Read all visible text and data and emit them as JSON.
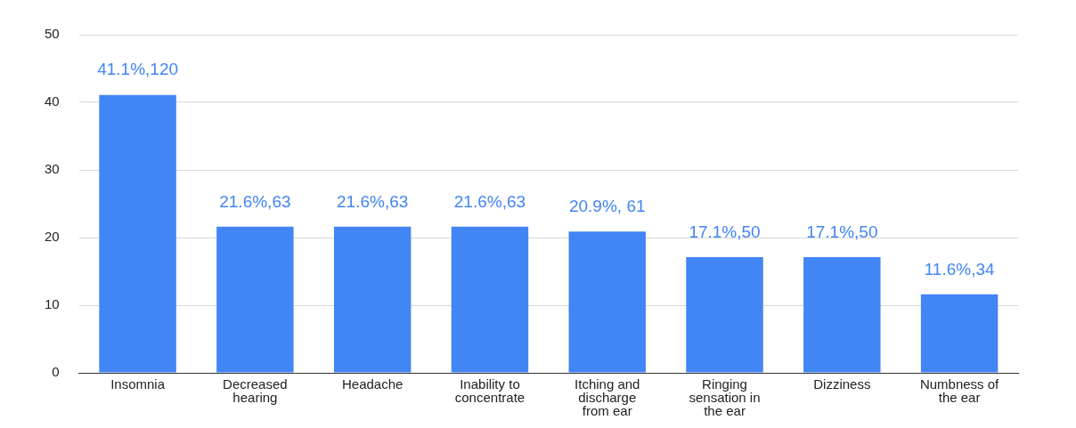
{
  "chart_data": {
    "type": "bar",
    "categories": [
      "Insomnia",
      "Decreased hearing",
      "Headache",
      "Inability to concentrate",
      "Itching and discharge from ear",
      "Ringing sensation in the ear",
      "Dizziness",
      "Numbness of the ear"
    ],
    "values": [
      41.1,
      21.6,
      21.6,
      21.6,
      20.9,
      17.1,
      17.1,
      11.6
    ],
    "value_labels": [
      "41.1%,120",
      "21.6%,63",
      "21.6%,63",
      "21.6%,63",
      "20.9%, 61",
      "17.1%,50",
      "17.1%,50",
      "11.6%,34"
    ],
    "color": "#4285f4",
    "ylim": [
      0,
      50
    ],
    "yticks": [
      0,
      10,
      20,
      30,
      40,
      50
    ],
    "grid": "y",
    "legend": false
  }
}
